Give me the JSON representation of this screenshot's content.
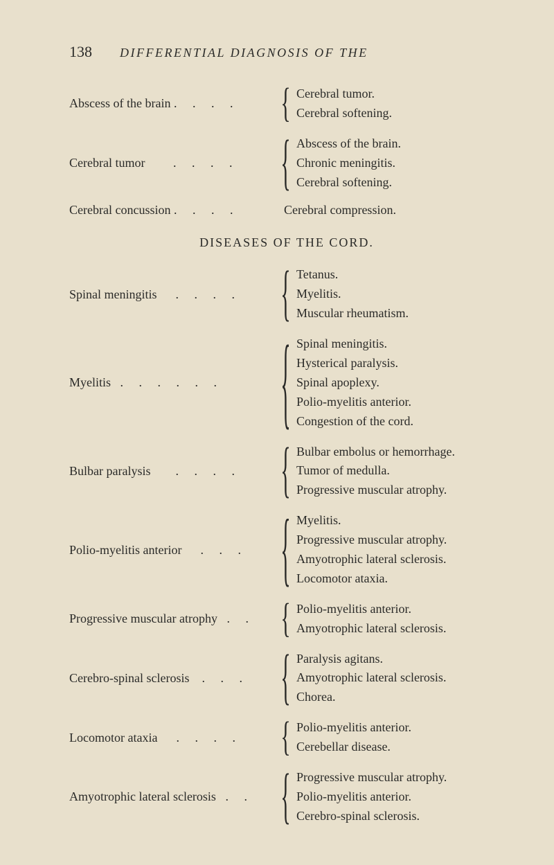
{
  "page_number": "138",
  "running_title": "DIFFERENTIAL DIAGNOSIS OF THE",
  "section_heading": "DISEASES OF THE CORD.",
  "top_entries": [
    {
      "term": "Abscess of the brain .     .     .     .",
      "definitions": [
        "Cerebral tumor.",
        "Cerebral softening."
      ]
    },
    {
      "term": "Cerebral tumor         .     .     .     .",
      "definitions": [
        "Abscess of the brain.",
        "Chronic meningitis.",
        "Cerebral softening."
      ]
    },
    {
      "term": "Cerebral concussion .     .     .     .",
      "definitions": [
        "Cerebral compression."
      ]
    }
  ],
  "cord_entries": [
    {
      "term": "Spinal meningitis      .     .     .     .",
      "definitions": [
        "Tetanus.",
        "Myelitis.",
        "Muscular rheumatism."
      ]
    },
    {
      "term": "Myelitis   .     .     .     .     .     .",
      "definitions": [
        "Spinal meningitis.",
        "Hysterical paralysis.",
        "Spinal apoplexy.",
        "Polio-myelitis anterior.",
        "Congestion of the cord."
      ]
    },
    {
      "term": "Bulbar paralysis        .     .     .     .",
      "definitions": [
        "Bulbar embolus or hemorrhage.",
        "Tumor of medulla.",
        "Progressive muscular atrophy."
      ]
    },
    {
      "term": "Polio-myelitis anterior      .     .     .",
      "definitions": [
        "Myelitis.",
        "Progressive muscular atrophy.",
        "Amyotrophic lateral sclerosis.",
        "Locomotor ataxia."
      ]
    },
    {
      "term": "Progressive muscular atrophy   .     .",
      "definitions": [
        "Polio-myelitis anterior.",
        "Amyotrophic lateral sclerosis."
      ]
    },
    {
      "term": "Cerebro-spinal sclerosis    .     .     .",
      "definitions": [
        "Paralysis agitans.",
        "Amyotrophic lateral sclerosis.",
        "Chorea."
      ]
    },
    {
      "term": "Locomotor ataxia      .     .     .     .",
      "definitions": [
        "Polio-myelitis anterior.",
        "Cerebellar disease."
      ]
    },
    {
      "term": "Amyotrophic lateral sclerosis   .     .",
      "definitions": [
        "Progressive muscular atrophy.",
        "Polio-myelitis anterior.",
        "Cerebro-spinal sclerosis."
      ]
    }
  ]
}
